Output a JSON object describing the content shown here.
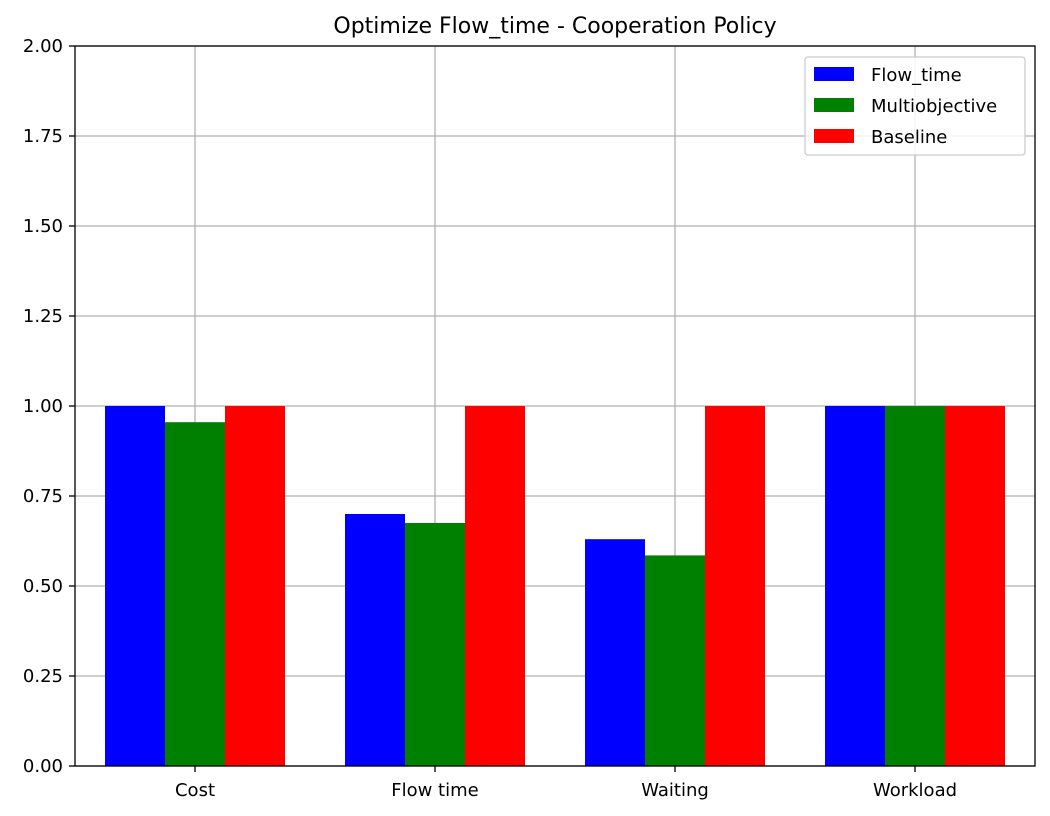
{
  "chart_data": {
    "type": "bar",
    "title": "Optimize Flow_time - Cooperation Policy",
    "categories": [
      "Cost",
      "Flow time",
      "Waiting",
      "Workload"
    ],
    "series": [
      {
        "name": "Flow_time",
        "color": "#0000ff",
        "values": [
          1.0,
          0.7,
          0.63,
          1.0
        ]
      },
      {
        "name": "Multiobjective",
        "color": "#008000",
        "values": [
          0.955,
          0.675,
          0.585,
          1.0
        ]
      },
      {
        "name": "Baseline",
        "color": "#ff0000",
        "values": [
          1.0,
          1.0,
          1.0,
          1.0
        ]
      }
    ],
    "ylim": [
      0,
      2.0
    ],
    "yticks": [
      0.0,
      0.25,
      0.5,
      0.75,
      1.0,
      1.25,
      1.5,
      1.75,
      2.0
    ],
    "ytick_labels": [
      "0.00",
      "0.25",
      "0.50",
      "0.75",
      "1.00",
      "1.25",
      "1.50",
      "1.75",
      "2.00"
    ],
    "grid": true,
    "legend_position": "top-right"
  }
}
